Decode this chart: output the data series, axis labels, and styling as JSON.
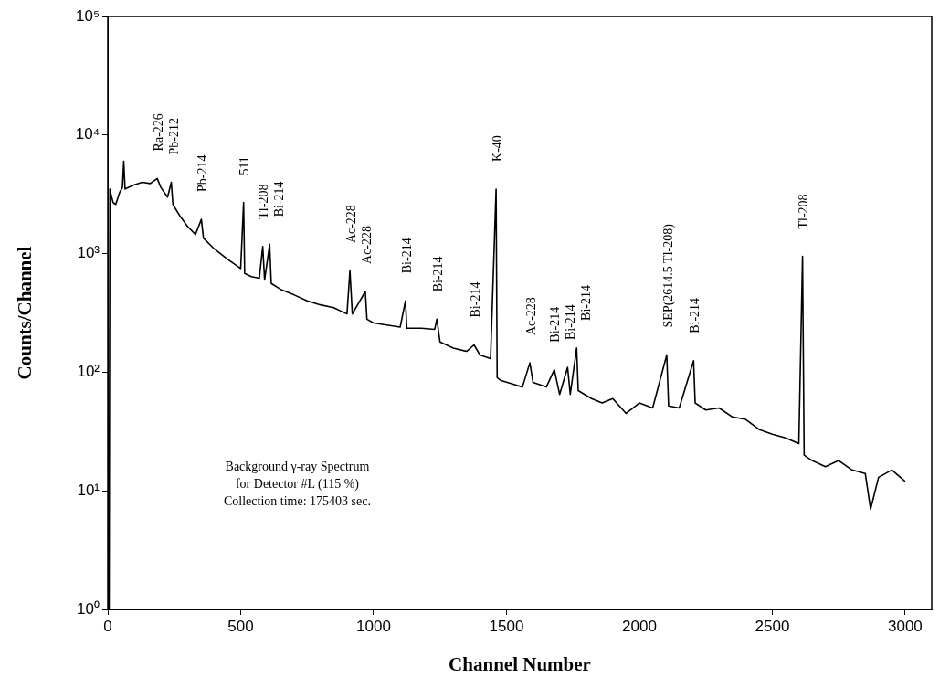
{
  "chart_data": {
    "type": "line",
    "xlabel": "Channel Number",
    "ylabel": "Counts/Channel",
    "x": [
      0,
      5,
      8,
      10,
      20,
      30,
      45,
      55,
      60,
      65,
      75,
      100,
      130,
      160,
      186,
      200,
      225,
      239,
      245,
      270,
      300,
      330,
      352,
      360,
      400,
      450,
      500,
      511,
      515,
      540,
      570,
      583,
      590,
      609,
      615,
      650,
      700,
      750,
      800,
      850,
      900,
      911,
      920,
      969,
      975,
      1000,
      1050,
      1100,
      1120,
      1125,
      1180,
      1230,
      1238,
      1250,
      1300,
      1350,
      1378,
      1400,
      1440,
      1461,
      1465,
      1480,
      1520,
      1560,
      1588,
      1600,
      1650,
      1680,
      1700,
      1730,
      1740,
      1764,
      1770,
      1820,
      1860,
      1900,
      1950,
      2000,
      2050,
      2103,
      2110,
      2150,
      2204,
      2210,
      2250,
      2300,
      2350,
      2400,
      2450,
      2500,
      2550,
      2600,
      2614,
      2620,
      2650,
      2700,
      2750,
      2800,
      2850,
      2870,
      2900,
      2950,
      3000
    ],
    "series": [
      {
        "color": "#000000",
        "values": [
          1,
          1,
          3500,
          3300,
          2700,
          2600,
          3300,
          3600,
          6000,
          3500,
          3600,
          3800,
          4000,
          3900,
          4300,
          3600,
          3000,
          4000,
          2600,
          2100,
          1700,
          1450,
          1950,
          1350,
          1100,
          900,
          750,
          2700,
          680,
          640,
          620,
          1150,
          600,
          1200,
          560,
          500,
          450,
          400,
          370,
          350,
          310,
          720,
          310,
          480,
          280,
          260,
          250,
          240,
          400,
          235,
          235,
          230,
          280,
          180,
          160,
          150,
          170,
          140,
          130,
          3500,
          90,
          85,
          80,
          75,
          120,
          82,
          75,
          105,
          65,
          110,
          65,
          160,
          70,
          60,
          55,
          60,
          45,
          55,
          50,
          140,
          52,
          50,
          125,
          55,
          48,
          50,
          42,
          40,
          33,
          30,
          28,
          25,
          950,
          20,
          18,
          16,
          18,
          15,
          14,
          7,
          13,
          15,
          12
        ]
      }
    ],
    "xlim": [
      0,
      3100
    ],
    "xticks": [
      0,
      500,
      1000,
      1500,
      2000,
      2500,
      3000
    ],
    "ylim": [
      1,
      100000
    ],
    "yticks": [
      {
        "value": 1,
        "label": "10⁰"
      },
      {
        "value": 10,
        "label": "10¹"
      },
      {
        "value": 100,
        "label": "10²"
      },
      {
        "value": 1000,
        "label": "10³"
      },
      {
        "value": 10000,
        "label": "10⁴"
      },
      {
        "value": 100000,
        "label": "10⁵"
      }
    ],
    "log": "y",
    "grid": false,
    "legend": false,
    "marker": "none",
    "line_style": "solid",
    "annotations": [
      {
        "text": "Ra-226",
        "x": 186,
        "y": 4300
      },
      {
        "text": "Pb-212",
        "x": 239,
        "y": 4000
      },
      {
        "text": "Pb-214",
        "x": 352,
        "y": 1950
      },
      {
        "text": "511",
        "x": 511,
        "y": 2700
      },
      {
        "text": "Tl-208",
        "x": 583,
        "y": 1150
      },
      {
        "text": "Bi-214",
        "x": 609,
        "y": 1200
      },
      {
        "text": "Ac-228",
        "x": 911,
        "y": 720
      },
      {
        "text": "Ac-228",
        "x": 969,
        "y": 480
      },
      {
        "text": "Bi-214",
        "x": 1120,
        "y": 400
      },
      {
        "text": "Bi-214",
        "x": 1238,
        "y": 280
      },
      {
        "text": "Bi-214",
        "x": 1378,
        "y": 170
      },
      {
        "text": "K-40",
        "x": 1461,
        "y": 3500
      },
      {
        "text": "Ac-228",
        "x": 1588,
        "y": 120
      },
      {
        "text": "Bi-214",
        "x": 1680,
        "y": 105
      },
      {
        "text": "Bi-214",
        "x": 1730,
        "y": 110
      },
      {
        "text": "Bi-214",
        "x": 1764,
        "y": 160
      },
      {
        "text": "SEP(2614.5 Tl-208)",
        "x": 2103,
        "y": 140
      },
      {
        "text": "Bi-214",
        "x": 2204,
        "y": 125
      },
      {
        "text": "Tl-208",
        "x": 2614,
        "y": 950
      },
      "Background γ-ray Spectrum\nfor Detector #L (115 %)\nCollection time: 175403 sec."
    ]
  }
}
